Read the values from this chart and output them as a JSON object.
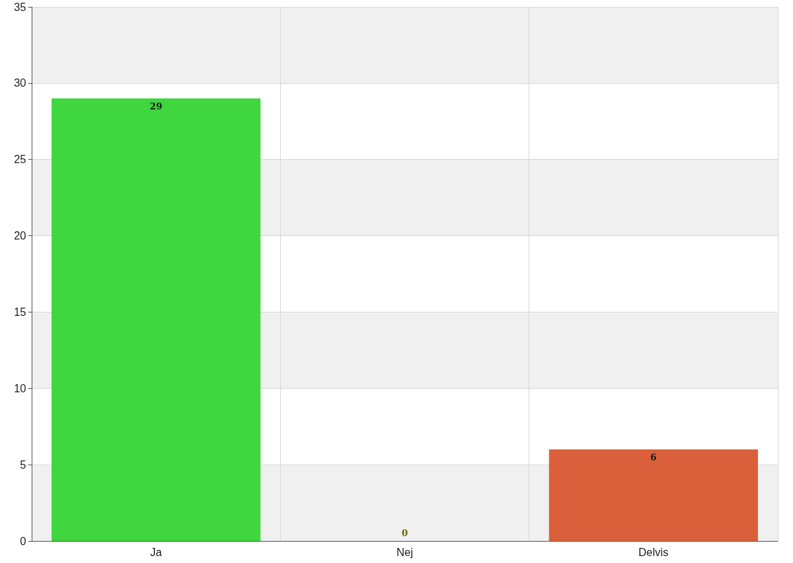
{
  "chart_data": {
    "type": "bar",
    "categories": [
      "Ja",
      "Nej",
      "Delvis"
    ],
    "values": [
      29,
      0,
      6
    ],
    "colors": [
      "#3fd63f",
      "#6b6b00",
      "#d9603a"
    ],
    "ylim": [
      0,
      35
    ],
    "yticks": [
      0,
      5,
      10,
      15,
      20,
      25,
      30,
      35
    ],
    "grid": true,
    "data_labels": true
  }
}
